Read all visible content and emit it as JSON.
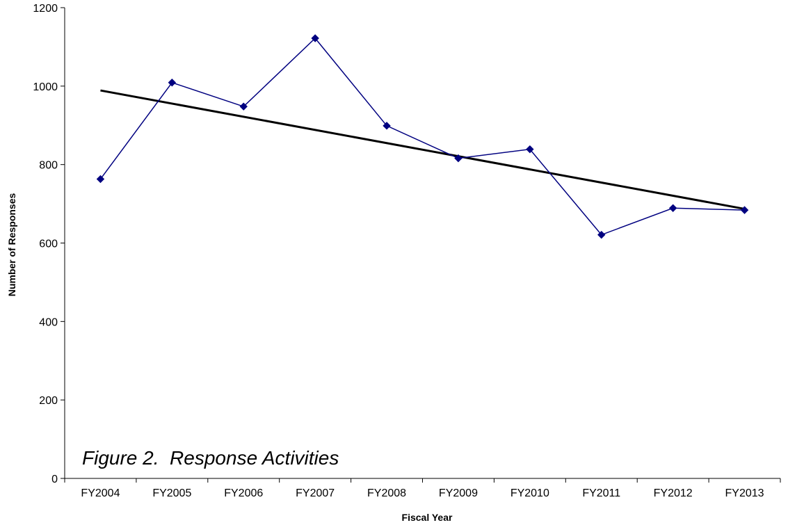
{
  "chart_data": {
    "type": "line",
    "categories": [
      "FY2004",
      "FY2005",
      "FY2006",
      "FY2007",
      "FY2008",
      "FY2009",
      "FY2010",
      "FY2011",
      "FY2012",
      "FY2013"
    ],
    "series": [
      {
        "values": [
          763,
          1009,
          948,
          1122,
          899,
          816,
          839,
          621,
          689,
          684
        ],
        "color": "#000080",
        "marker": "diamond"
      }
    ],
    "trendline": {
      "kind": "linear",
      "start": 989,
      "end": 687,
      "color": "#000000"
    },
    "ylim": [
      0,
      1200
    ],
    "yticks": [
      0,
      200,
      400,
      600,
      800,
      1000,
      1200
    ],
    "xlabel": "Fiscal Year",
    "ylabel": "Number of Responses",
    "annotation": "Figure 2.  Response Activities",
    "grid": false,
    "legend": "none"
  }
}
